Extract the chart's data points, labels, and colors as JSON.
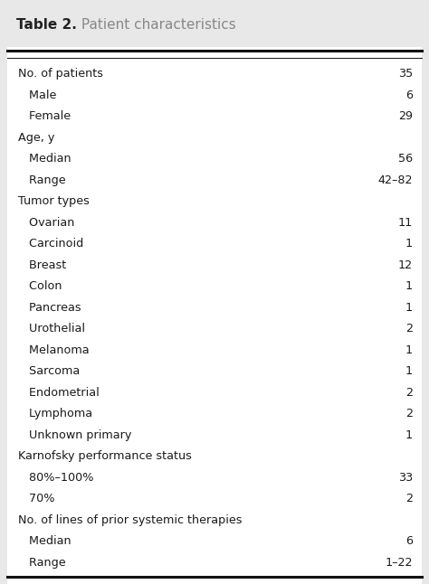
{
  "title_bold": "Table 2.",
  "title_regular": " Patient characteristics",
  "background_color": "#e8e8e8",
  "table_background": "#ffffff",
  "rows": [
    {
      "label": "No. of patients",
      "indent": 0,
      "value": "35"
    },
    {
      "label": "   Male",
      "indent": 1,
      "value": "6"
    },
    {
      "label": "   Female",
      "indent": 1,
      "value": "29"
    },
    {
      "label": "Age, y",
      "indent": 0,
      "value": ""
    },
    {
      "label": "   Median",
      "indent": 1,
      "value": "56"
    },
    {
      "label": "   Range",
      "indent": 1,
      "value": "42–82"
    },
    {
      "label": "Tumor types",
      "indent": 0,
      "value": ""
    },
    {
      "label": "   Ovarian",
      "indent": 1,
      "value": "11"
    },
    {
      "label": "   Carcinoid",
      "indent": 1,
      "value": "1"
    },
    {
      "label": "   Breast",
      "indent": 1,
      "value": "12"
    },
    {
      "label": "   Colon",
      "indent": 1,
      "value": "1"
    },
    {
      "label": "   Pancreas",
      "indent": 1,
      "value": "1"
    },
    {
      "label": "   Urothelial",
      "indent": 1,
      "value": "2"
    },
    {
      "label": "   Melanoma",
      "indent": 1,
      "value": "1"
    },
    {
      "label": "   Sarcoma",
      "indent": 1,
      "value": "1"
    },
    {
      "label": "   Endometrial",
      "indent": 1,
      "value": "2"
    },
    {
      "label": "   Lymphoma",
      "indent": 1,
      "value": "2"
    },
    {
      "label": "   Unknown primary",
      "indent": 1,
      "value": "1"
    },
    {
      "label": "Karnofsky performance status",
      "indent": 0,
      "value": ""
    },
    {
      "label": "   80%–100%",
      "indent": 1,
      "value": "33"
    },
    {
      "label": "   70%",
      "indent": 1,
      "value": "2"
    },
    {
      "label": "No. of lines of prior systemic therapies",
      "indent": 0,
      "value": ""
    },
    {
      "label": "   Median",
      "indent": 1,
      "value": "6"
    },
    {
      "label": "   Range",
      "indent": 1,
      "value": "1–22"
    }
  ],
  "font_size": 9.2,
  "title_font_size_bold": 11,
  "title_font_size_regular": 11,
  "text_color": "#1a1a1a",
  "line_color": "#111111",
  "title_bold_color": "#222222",
  "title_regular_color": "#888888"
}
